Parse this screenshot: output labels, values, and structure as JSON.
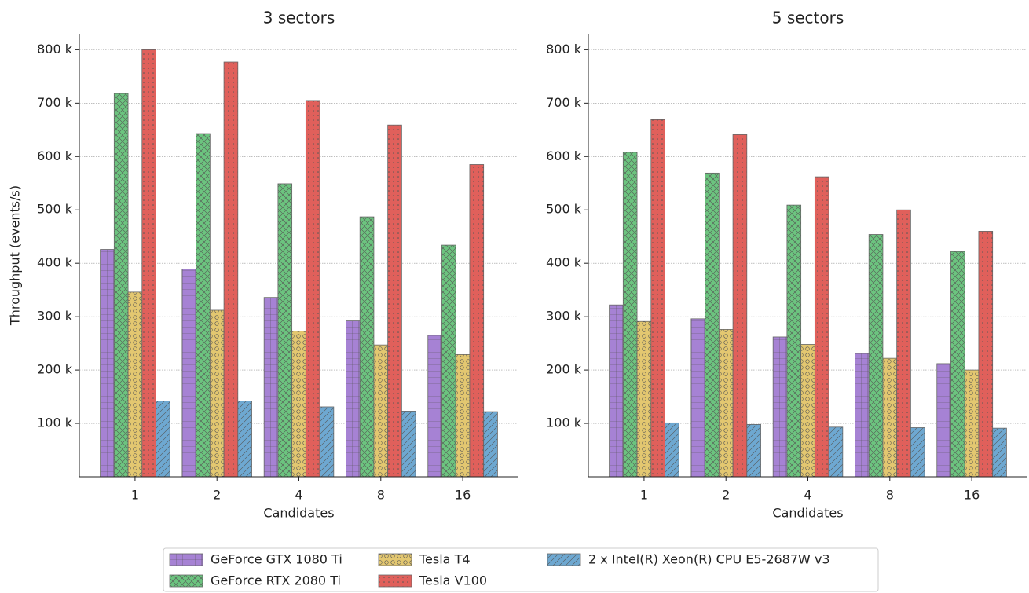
{
  "chart_data": [
    {
      "type": "bar",
      "title": "3 sectors",
      "xlabel": "Candidates",
      "ylabel": "Throughput (events/s)",
      "categories": [
        "1",
        "2",
        "4",
        "8",
        "16"
      ],
      "series": [
        {
          "name": "GeForce GTX 1080 Ti",
          "color": "#a682d4",
          "values": [
            426000,
            389000,
            336000,
            292000,
            265000
          ]
        },
        {
          "name": "GeForce RTX 2080 Ti",
          "color": "#6cc47f",
          "values": [
            718000,
            643000,
            549000,
            487000,
            434000
          ]
        },
        {
          "name": "Tesla T4",
          "color": "#e3c770",
          "values": [
            346000,
            312000,
            273000,
            247000,
            229000
          ]
        },
        {
          "name": "Tesla V100",
          "color": "#e0605b",
          "values": [
            800000,
            777000,
            705000,
            659000,
            585000
          ]
        },
        {
          "name": "2 x Intel(R) Xeon(R) CPU E5-2687W v3",
          "color": "#6ea8d1",
          "values": [
            142000,
            142000,
            131000,
            123000,
            122000
          ]
        }
      ],
      "ylim": [
        0,
        830000
      ],
      "yticks": [
        {
          "value": 100000,
          "label": "100 k"
        },
        {
          "value": 200000,
          "label": "200 k"
        },
        {
          "value": 300000,
          "label": "300 k"
        },
        {
          "value": 400000,
          "label": "400 k"
        },
        {
          "value": 500000,
          "label": "500 k"
        },
        {
          "value": 600000,
          "label": "600 k"
        },
        {
          "value": 700000,
          "label": "700 k"
        },
        {
          "value": 800000,
          "label": "800 k"
        }
      ],
      "grid": true,
      "legend": "lower center"
    },
    {
      "type": "bar",
      "title": "5 sectors",
      "xlabel": "Candidates",
      "categories": [
        "1",
        "2",
        "4",
        "8",
        "16"
      ],
      "series": [
        {
          "name": "GeForce GTX 1080 Ti",
          "color": "#a682d4",
          "values": [
            322000,
            296000,
            262000,
            231000,
            212000
          ]
        },
        {
          "name": "GeForce RTX 2080 Ti",
          "color": "#6cc47f",
          "values": [
            608000,
            569000,
            509000,
            454000,
            422000
          ]
        },
        {
          "name": "Tesla T4",
          "color": "#e3c770",
          "values": [
            291000,
            276000,
            248000,
            222000,
            200000
          ]
        },
        {
          "name": "Tesla V100",
          "color": "#e0605b",
          "values": [
            669000,
            641000,
            562000,
            500000,
            460000
          ]
        },
        {
          "name": "2 x Intel(R) Xeon(R) CPU E5-2687W v3",
          "color": "#6ea8d1",
          "values": [
            101000,
            98000,
            93000,
            92000,
            91000
          ]
        }
      ],
      "ylim": [
        0,
        830000
      ],
      "yticks": [
        {
          "value": 100000,
          "label": "100 k"
        },
        {
          "value": 200000,
          "label": "200 k"
        },
        {
          "value": 300000,
          "label": "300 k"
        },
        {
          "value": 400000,
          "label": "400 k"
        },
        {
          "value": 500000,
          "label": "500 k"
        },
        {
          "value": 600000,
          "label": "600 k"
        },
        {
          "value": 700000,
          "label": "700 k"
        },
        {
          "value": 800000,
          "label": "800 k"
        }
      ],
      "grid": true
    }
  ]
}
